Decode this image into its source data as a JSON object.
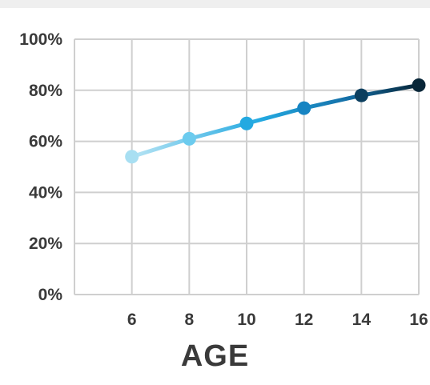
{
  "chart_data": {
    "type": "line",
    "xlabel": "AGE",
    "ylabel": "",
    "x": [
      6,
      8,
      10,
      12,
      14,
      16
    ],
    "series": [
      {
        "values": [
          54,
          61,
          67,
          73,
          78,
          82
        ]
      }
    ],
    "xlim": [
      4,
      16
    ],
    "ylim": [
      0,
      100
    ],
    "x_ticks": [
      6,
      8,
      10,
      12,
      14,
      16
    ],
    "y_ticks": [
      0,
      20,
      40,
      60,
      80,
      100
    ],
    "y_tick_labels": [
      "0%",
      "20%",
      "40%",
      "60%",
      "80%",
      "100%"
    ],
    "grid": true,
    "colors": {
      "point_gradient": [
        "#a8dff2",
        "#6ccbee",
        "#23a9e1",
        "#1784c2",
        "#0c3f5f",
        "#082638"
      ],
      "grid": "#cfcfcf",
      "text": "#3a3a3a"
    }
  }
}
